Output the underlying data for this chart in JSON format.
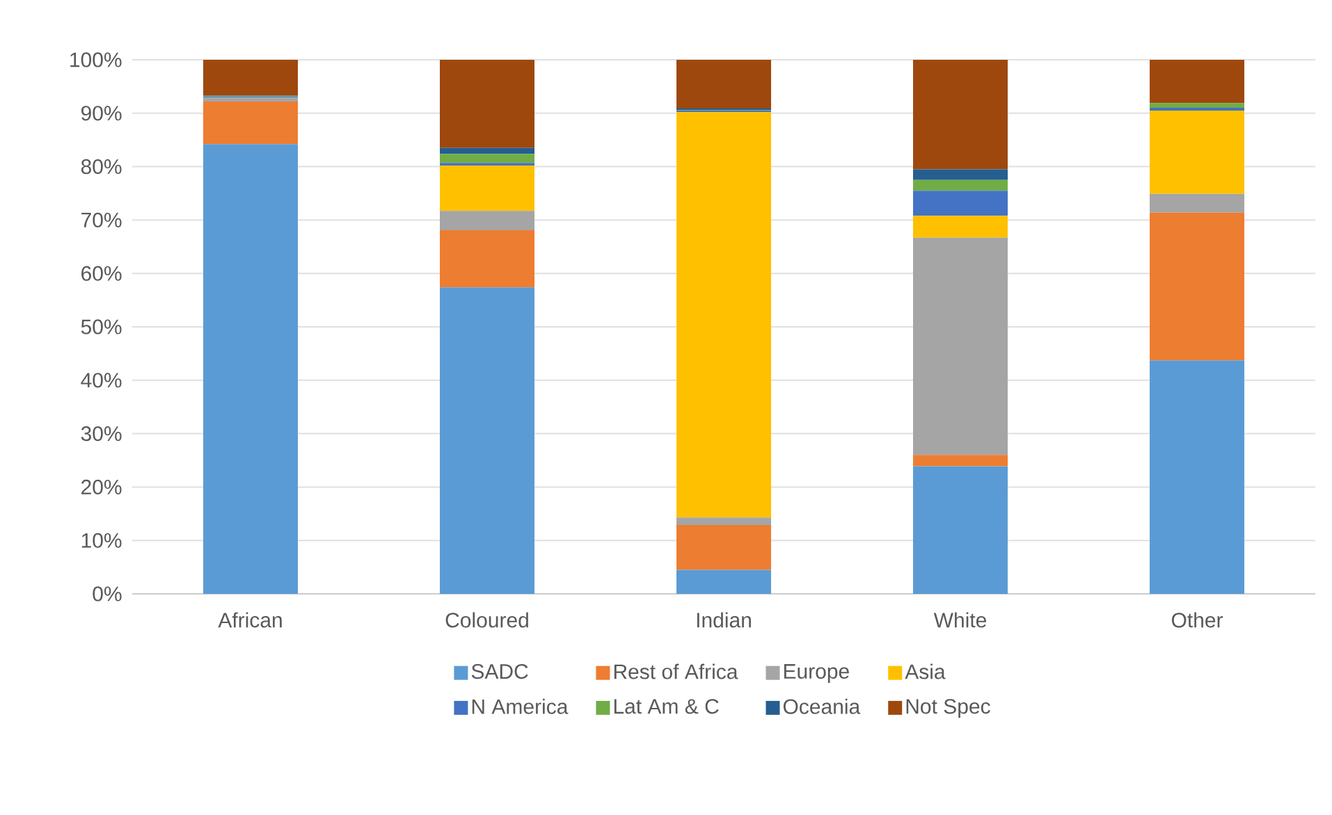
{
  "chart_data": {
    "type": "bar",
    "stacked": true,
    "categories": [
      "African",
      "Coloured",
      "Indian",
      "White",
      "Other"
    ],
    "series": [
      {
        "name": "SADC",
        "color": "#5b9bd5",
        "values": [
          84.2,
          57.4,
          4.5,
          23.9,
          43.7
        ]
      },
      {
        "name": "Rest of Africa",
        "color": "#ed7d31",
        "values": [
          8.0,
          10.7,
          8.4,
          2.1,
          27.7
        ]
      },
      {
        "name": "Europe",
        "color": "#a5a5a5",
        "values": [
          0.7,
          3.6,
          1.4,
          40.7,
          3.5
        ]
      },
      {
        "name": "Asia",
        "color": "#ffc000",
        "values": [
          0,
          8.5,
          75.9,
          4.1,
          15.6
        ]
      },
      {
        "name": "N America",
        "color": "#4472c4",
        "values": [
          0.2,
          0.5,
          0.3,
          4.7,
          0.5
        ]
      },
      {
        "name": "Lat Am & C",
        "color": "#70ad47",
        "values": [
          0.1,
          1.7,
          0.1,
          2.0,
          0.9
        ]
      },
      {
        "name": "Oceania",
        "color": "#255e91",
        "values": [
          0.1,
          1.1,
          0.3,
          2.0,
          0
        ]
      },
      {
        "name": "Not Spec",
        "color": "#9e480e",
        "values": [
          6.7,
          16.5,
          9.1,
          20.5,
          8.1
        ]
      }
    ],
    "ylim": [
      0,
      100
    ],
    "yticks": [
      {
        "value": 0,
        "label": "0%"
      },
      {
        "value": 10,
        "label": "10%"
      },
      {
        "value": 20,
        "label": "20%"
      },
      {
        "value": 30,
        "label": "30%"
      },
      {
        "value": 40,
        "label": "40%"
      },
      {
        "value": 50,
        "label": "50%"
      },
      {
        "value": 60,
        "label": "60%"
      },
      {
        "value": 70,
        "label": "70%"
      },
      {
        "value": 80,
        "label": "80%"
      },
      {
        "value": 90,
        "label": "90%"
      },
      {
        "value": 100,
        "label": "100%"
      }
    ],
    "grid": "y",
    "legend": "bottom"
  }
}
